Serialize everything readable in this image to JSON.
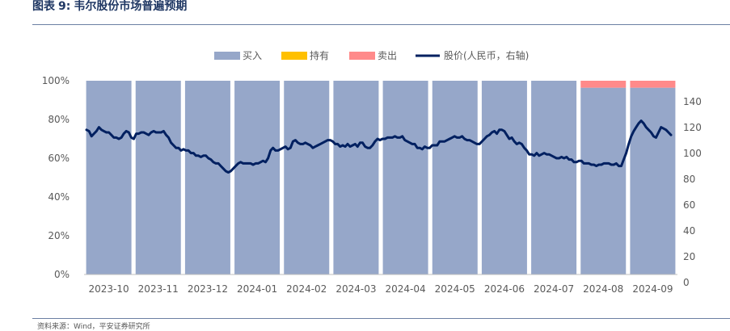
{
  "header": {
    "figure_label": "图表",
    "figure_number": "9:",
    "title": "韦尔股份市场普遍预期"
  },
  "footer": {
    "source": "资料来源：Wind，平安证券研究所"
  },
  "colors": {
    "buy": "#96a7c9",
    "hold": "#ffc000",
    "sell": "#ff8a8a",
    "price": "#002060"
  },
  "chart_data": {
    "type": "bar",
    "categories": [
      "2023-10",
      "2023-11",
      "2023-12",
      "2024-01",
      "2024-02",
      "2024-03",
      "2024-04",
      "2024-05",
      "2024-06",
      "2024-07",
      "2024-08",
      "2024-09"
    ],
    "series": [
      {
        "name": "买入",
        "values": [
          100,
          100,
          100,
          100,
          100,
          100,
          100,
          100,
          100,
          100,
          96.4,
          96.4
        ]
      },
      {
        "name": "持有",
        "values": [
          0,
          0,
          0,
          0,
          0,
          0,
          0,
          0,
          0,
          0,
          0,
          0
        ]
      },
      {
        "name": "卖出",
        "values": [
          0,
          0,
          0,
          0,
          0,
          0,
          0,
          0,
          0,
          0,
          3.6,
          3.6
        ]
      }
    ],
    "line": {
      "name": "股价(人民币，右轴)",
      "values": [
        112,
        111,
        107,
        109,
        111,
        114,
        112,
        111,
        110,
        110,
        108,
        106,
        106,
        105,
        106,
        109,
        111,
        110,
        106,
        105,
        109,
        109,
        110,
        110,
        109,
        108,
        110,
        111,
        110,
        110,
        110,
        111,
        108,
        106,
        102,
        100,
        98,
        98,
        96,
        97,
        96,
        96,
        94,
        94,
        92,
        92,
        91,
        92,
        92,
        90,
        89,
        87,
        86,
        86,
        84,
        82,
        80,
        79,
        80,
        82,
        84,
        86,
        87,
        86,
        86,
        86,
        86,
        85,
        86,
        86,
        87,
        88,
        87,
        90,
        96,
        98,
        96,
        96,
        97,
        98,
        99,
        97,
        98,
        103,
        104,
        102,
        101,
        101,
        102,
        101,
        100,
        98,
        99,
        100,
        101,
        102,
        103,
        104,
        104,
        103,
        101,
        101,
        99,
        100,
        99,
        101,
        99,
        100,
        101,
        99,
        102,
        102,
        99,
        98,
        98,
        100,
        103,
        105,
        104,
        105,
        105,
        106,
        106,
        106,
        107,
        106,
        106,
        107,
        104,
        103,
        102,
        101,
        101,
        98,
        98,
        97,
        99,
        98,
        98,
        100,
        100,
        100,
        103,
        103,
        103,
        104,
        105,
        106,
        107,
        106,
        106,
        107,
        105,
        104,
        104,
        103,
        102,
        101,
        101,
        103,
        105,
        107,
        108,
        110,
        111,
        109,
        112,
        112,
        111,
        108,
        105,
        106,
        103,
        101,
        102,
        101,
        98,
        96,
        93,
        93,
        92,
        94,
        92,
        93,
        94,
        93,
        93,
        92,
        91,
        90,
        90,
        91,
        90,
        91,
        89,
        89,
        87,
        87,
        88,
        88,
        86,
        86,
        86,
        85,
        85,
        84,
        85,
        85,
        86,
        86,
        86,
        85,
        85,
        86,
        84,
        84,
        89,
        94,
        101,
        107,
        111,
        114,
        117,
        119,
        117,
        114,
        112,
        110,
        107,
        106,
        110,
        114,
        113,
        112,
        110,
        108
      ]
    },
    "y_left": {
      "min": 0,
      "max": 100,
      "ticks": [
        "0%",
        "20%",
        "40%",
        "60%",
        "80%",
        "100%"
      ]
    },
    "y_right": {
      "min": 0,
      "max": 150,
      "ticks": [
        "0",
        "20",
        "40",
        "60",
        "80",
        "100",
        "120",
        "140"
      ]
    },
    "legend": {
      "position": "top",
      "items": [
        "买入",
        "持有",
        "卖出",
        "股价(人民币，右轴)"
      ]
    }
  }
}
